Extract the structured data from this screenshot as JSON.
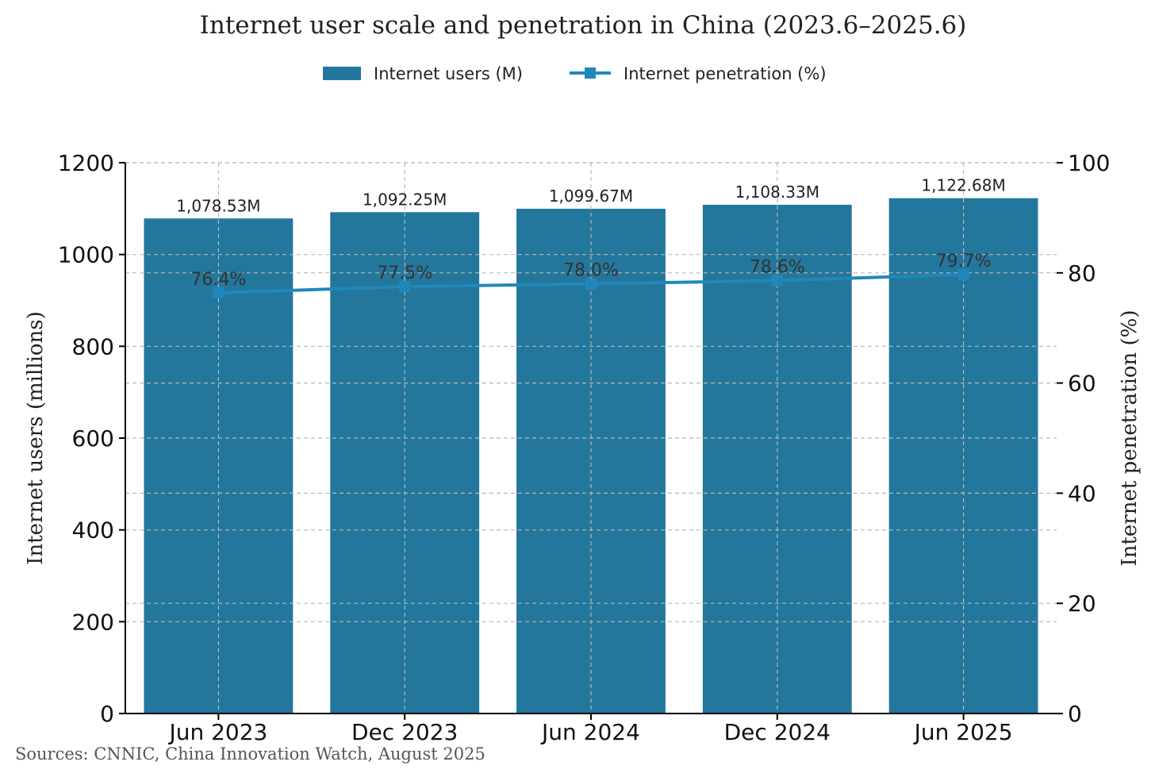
{
  "chart_data": {
    "type": "bar",
    "title": "Internet user scale and penetration in China (2023.6–2025.6)",
    "xlabel": "",
    "ylabel": "Internet users (millions)",
    "y2label": "Internet penetration (%)",
    "categories": [
      "Jun 2023",
      "Dec 2023",
      "Jun 2024",
      "Dec 2024",
      "Jun 2025"
    ],
    "series": [
      {
        "name": "Internet users (M)",
        "type": "bar",
        "axis": "left",
        "values": [
          1078.53,
          1092.25,
          1099.67,
          1108.33,
          1122.68
        ],
        "labels": [
          "1,078.53M",
          "1,092.25M",
          "1,099.67M",
          "1,108.33M",
          "1,122.68M"
        ],
        "color": "#23779c"
      },
      {
        "name": "Internet penetration (%)",
        "type": "line",
        "axis": "right",
        "marker": "square",
        "values": [
          76.4,
          77.5,
          78.0,
          78.6,
          79.7
        ],
        "labels": [
          "76.4%",
          "77.5%",
          "78.0%",
          "78.6%",
          "79.7%"
        ],
        "color": "#2187bb"
      }
    ],
    "ylim": [
      0,
      1200
    ],
    "yticks": [
      0,
      200,
      400,
      600,
      800,
      1000,
      1200
    ],
    "y2lim": [
      0,
      100
    ],
    "y2ticks": [
      0,
      20,
      40,
      60,
      80,
      100
    ],
    "grid": true,
    "legend": "top-center",
    "source": "Sources: CNNIC, China Innovation Watch, August 2025"
  }
}
